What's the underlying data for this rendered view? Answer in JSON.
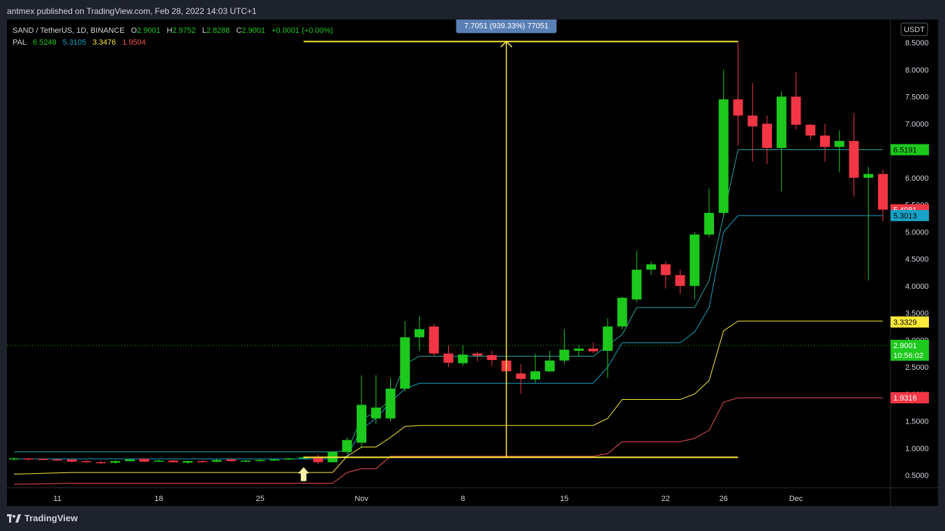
{
  "header": {
    "published": "antmex published on TradingView.com, Feb 28, 2022 14:03 UTC+1"
  },
  "legend": {
    "symbol": "SAND / TetherUS, 1D, BINANCE",
    "o_label": "O",
    "o_value": "2.9001",
    "h_label": "H",
    "h_value": "2.9752",
    "l_label": "L",
    "l_value": "2.8288",
    "c_label": "C",
    "c_value": "2.9001",
    "change": "+0.0001 (+0.00%)",
    "pal_label": "PAL",
    "pal_values": [
      "6.5248",
      "5.3105",
      "3.3476",
      "1.9504"
    ]
  },
  "footer": {
    "brand": "TradingView"
  },
  "colors": {
    "up": "#1cc91c",
    "down": "#f23645",
    "measure": "#ffeb3b",
    "teal_line": "#26a69a",
    "cyan_line": "#17a2c6",
    "yellow_line": "#ffeb3b",
    "red_line": "#ef5350",
    "measure_label_bg": "#5a7fb4"
  },
  "chart_data": {
    "type": "candlestick",
    "currency": "USDT",
    "y_ticks": [
      "0.5000",
      "1.0000",
      "1.5000",
      "2.0000",
      "2.5000",
      "3.0000",
      "3.5000",
      "4.0000",
      "4.5000",
      "5.0000",
      "5.5000",
      "6.0000",
      "6.5000",
      "7.0000",
      "7.5000",
      "8.0000",
      "8.5000"
    ],
    "y_tick_values": [
      0.5,
      1,
      1.5,
      2,
      2.5,
      3,
      3.5,
      4,
      4.5,
      5,
      5.5,
      6,
      6.5,
      7,
      7.5,
      8,
      8.5
    ],
    "ylim": [
      0.3,
      8.9
    ],
    "x_ticks": [
      {
        "label": "11",
        "i": 3
      },
      {
        "label": "18",
        "i": 10
      },
      {
        "label": "25",
        "i": 17
      },
      {
        "label": "Nov",
        "i": 24
      },
      {
        "label": "8",
        "i": 31
      },
      {
        "label": "15",
        "i": 38
      },
      {
        "label": "22",
        "i": 45
      },
      {
        "label": "26",
        "i": 49
      },
      {
        "label": "Dec",
        "i": 54
      }
    ],
    "candles": [
      {
        "o": 0.8,
        "h": 0.83,
        "l": 0.77,
        "c": 0.81
      },
      {
        "o": 0.81,
        "h": 0.82,
        "l": 0.77,
        "c": 0.8
      },
      {
        "o": 0.8,
        "h": 0.82,
        "l": 0.78,
        "c": 0.79
      },
      {
        "o": 0.79,
        "h": 0.81,
        "l": 0.76,
        "c": 0.78
      },
      {
        "o": 0.79,
        "h": 0.8,
        "l": 0.73,
        "c": 0.75
      },
      {
        "o": 0.76,
        "h": 0.78,
        "l": 0.73,
        "c": 0.75
      },
      {
        "o": 0.74,
        "h": 0.77,
        "l": 0.71,
        "c": 0.73
      },
      {
        "o": 0.73,
        "h": 0.78,
        "l": 0.71,
        "c": 0.76
      },
      {
        "o": 0.76,
        "h": 0.8,
        "l": 0.75,
        "c": 0.79
      },
      {
        "o": 0.8,
        "h": 0.81,
        "l": 0.74,
        "c": 0.75
      },
      {
        "o": 0.75,
        "h": 0.79,
        "l": 0.74,
        "c": 0.77
      },
      {
        "o": 0.77,
        "h": 0.78,
        "l": 0.73,
        "c": 0.74
      },
      {
        "o": 0.73,
        "h": 0.77,
        "l": 0.71,
        "c": 0.76
      },
      {
        "o": 0.76,
        "h": 0.78,
        "l": 0.74,
        "c": 0.75
      },
      {
        "o": 0.75,
        "h": 0.8,
        "l": 0.74,
        "c": 0.78
      },
      {
        "o": 0.79,
        "h": 0.81,
        "l": 0.75,
        "c": 0.76
      },
      {
        "o": 0.76,
        "h": 0.78,
        "l": 0.74,
        "c": 0.77
      },
      {
        "o": 0.77,
        "h": 0.8,
        "l": 0.75,
        "c": 0.78
      },
      {
        "o": 0.78,
        "h": 0.8,
        "l": 0.76,
        "c": 0.79
      },
      {
        "o": 0.79,
        "h": 0.82,
        "l": 0.78,
        "c": 0.81
      },
      {
        "o": 0.81,
        "h": 0.85,
        "l": 0.8,
        "c": 0.83
      },
      {
        "o": 0.84,
        "h": 0.88,
        "l": 0.71,
        "c": 0.74
      },
      {
        "o": 0.74,
        "h": 0.95,
        "l": 0.73,
        "c": 0.93
      },
      {
        "o": 0.93,
        "h": 1.2,
        "l": 0.9,
        "c": 1.15
      },
      {
        "o": 1.1,
        "h": 2.35,
        "l": 1.0,
        "c": 1.8
      },
      {
        "o": 1.55,
        "h": 2.35,
        "l": 1.45,
        "c": 1.75
      },
      {
        "o": 1.55,
        "h": 2.3,
        "l": 1.5,
        "c": 2.1
      },
      {
        "o": 2.1,
        "h": 3.35,
        "l": 2.05,
        "c": 3.05
      },
      {
        "o": 3.05,
        "h": 3.45,
        "l": 2.8,
        "c": 3.2
      },
      {
        "o": 3.25,
        "h": 3.3,
        "l": 2.7,
        "c": 2.75
      },
      {
        "o": 2.75,
        "h": 2.9,
        "l": 2.5,
        "c": 2.58
      },
      {
        "o": 2.57,
        "h": 2.9,
        "l": 2.52,
        "c": 2.73
      },
      {
        "o": 2.75,
        "h": 2.78,
        "l": 2.6,
        "c": 2.71
      },
      {
        "o": 2.72,
        "h": 2.8,
        "l": 2.52,
        "c": 2.63
      },
      {
        "o": 2.62,
        "h": 2.7,
        "l": 2.32,
        "c": 2.42
      },
      {
        "o": 2.38,
        "h": 2.55,
        "l": 2.0,
        "c": 2.28
      },
      {
        "o": 2.27,
        "h": 2.75,
        "l": 2.2,
        "c": 2.42
      },
      {
        "o": 2.42,
        "h": 2.8,
        "l": 2.4,
        "c": 2.62
      },
      {
        "o": 2.62,
        "h": 3.2,
        "l": 2.55,
        "c": 2.82
      },
      {
        "o": 2.8,
        "h": 2.9,
        "l": 2.7,
        "c": 2.84
      },
      {
        "o": 2.84,
        "h": 2.95,
        "l": 2.75,
        "c": 2.79
      },
      {
        "o": 2.8,
        "h": 3.4,
        "l": 2.3,
        "c": 3.25
      },
      {
        "o": 3.25,
        "h": 3.8,
        "l": 3.2,
        "c": 3.78
      },
      {
        "o": 3.75,
        "h": 4.65,
        "l": 3.7,
        "c": 4.3
      },
      {
        "o": 4.3,
        "h": 4.45,
        "l": 4.2,
        "c": 4.4
      },
      {
        "o": 4.4,
        "h": 4.45,
        "l": 3.95,
        "c": 4.2
      },
      {
        "o": 4.2,
        "h": 4.3,
        "l": 3.85,
        "c": 4.0
      },
      {
        "o": 4.0,
        "h": 5.0,
        "l": 3.75,
        "c": 4.95
      },
      {
        "o": 4.95,
        "h": 5.8,
        "l": 4.9,
        "c": 5.35
      },
      {
        "o": 5.35,
        "h": 8.0,
        "l": 5.3,
        "c": 7.45
      },
      {
        "o": 7.45,
        "h": 8.5,
        "l": 6.6,
        "c": 7.15
      },
      {
        "o": 7.15,
        "h": 7.75,
        "l": 6.3,
        "c": 6.95
      },
      {
        "o": 7.0,
        "h": 7.15,
        "l": 6.25,
        "c": 6.55
      },
      {
        "o": 6.55,
        "h": 7.6,
        "l": 5.75,
        "c": 7.5
      },
      {
        "o": 7.5,
        "h": 7.95,
        "l": 6.9,
        "c": 6.98
      },
      {
        "o": 6.98,
        "h": 7.0,
        "l": 6.7,
        "c": 6.78
      },
      {
        "o": 6.78,
        "h": 7.0,
        "l": 6.3,
        "c": 6.57
      },
      {
        "o": 6.57,
        "h": 6.88,
        "l": 6.1,
        "c": 6.68
      },
      {
        "o": 6.68,
        "h": 7.2,
        "l": 5.65,
        "c": 6.0
      },
      {
        "o": 6.0,
        "h": 6.2,
        "l": 4.1,
        "c": 6.07
      },
      {
        "o": 6.07,
        "h": 6.15,
        "l": 5.2,
        "c": 5.41
      }
    ],
    "pal_lines": [
      {
        "name": "teal",
        "color": "#26a69a",
        "points": [
          [
            0,
            0.93
          ],
          [
            22,
            0.93
          ],
          [
            23,
            0.95
          ],
          [
            24,
            1.55
          ],
          [
            25,
            1.65
          ],
          [
            26,
            1.9
          ],
          [
            27,
            2.55
          ],
          [
            28,
            2.7
          ],
          [
            40,
            2.7
          ],
          [
            41,
            2.9
          ],
          [
            42,
            3.1
          ],
          [
            43,
            3.6
          ],
          [
            47,
            3.6
          ],
          [
            48,
            4.1
          ],
          [
            49,
            5.3
          ],
          [
            50,
            6.52
          ],
          [
            60,
            6.52
          ]
        ]
      },
      {
        "name": "cyan",
        "color": "#17a2c6",
        "points": [
          [
            0,
            0.8
          ],
          [
            22,
            0.8
          ],
          [
            23,
            0.85
          ],
          [
            24,
            1.35
          ],
          [
            25,
            1.55
          ],
          [
            26,
            1.85
          ],
          [
            27,
            2.1
          ],
          [
            28,
            2.2
          ],
          [
            40,
            2.2
          ],
          [
            41,
            2.5
          ],
          [
            42,
            2.95
          ],
          [
            46,
            2.95
          ],
          [
            47,
            3.15
          ],
          [
            48,
            3.6
          ],
          [
            49,
            5.0
          ],
          [
            50,
            5.3
          ],
          [
            60,
            5.3
          ]
        ]
      },
      {
        "name": "yellow",
        "color": "#ffeb3b",
        "points": [
          [
            0,
            0.52
          ],
          [
            4,
            0.55
          ],
          [
            22,
            0.55
          ],
          [
            23,
            0.85
          ],
          [
            24,
            1.02
          ],
          [
            25,
            1.02
          ],
          [
            26,
            1.2
          ],
          [
            27,
            1.4
          ],
          [
            28,
            1.42
          ],
          [
            40,
            1.42
          ],
          [
            41,
            1.55
          ],
          [
            42,
            1.9
          ],
          [
            46,
            1.9
          ],
          [
            47,
            2.0
          ],
          [
            48,
            2.25
          ],
          [
            49,
            3.17
          ],
          [
            50,
            3.35
          ],
          [
            60,
            3.35
          ]
        ]
      },
      {
        "name": "red",
        "color": "#ef5350",
        "points": [
          [
            0,
            0.33
          ],
          [
            4,
            0.35
          ],
          [
            22,
            0.35
          ],
          [
            23,
            0.55
          ],
          [
            24,
            0.62
          ],
          [
            25,
            0.62
          ],
          [
            26,
            0.85
          ],
          [
            27,
            0.85
          ],
          [
            40,
            0.85
          ],
          [
            41,
            0.9
          ],
          [
            42,
            1.12
          ],
          [
            46,
            1.12
          ],
          [
            47,
            1.18
          ],
          [
            48,
            1.33
          ],
          [
            49,
            1.85
          ],
          [
            50,
            1.93
          ],
          [
            60,
            1.93
          ]
        ]
      }
    ],
    "price_labels": [
      {
        "value": 6.5191,
        "text": "6.5191",
        "bg": "#1cc91c",
        "fg": "#000000"
      },
      {
        "value": 5.4081,
        "text": "5.4081",
        "bg": "#f23645",
        "fg": "#ffffff"
      },
      {
        "value": 5.3013,
        "text": "5.3013",
        "bg": "#17a2c6",
        "fg": "#000000"
      },
      {
        "value": 3.3329,
        "text": "3.3329",
        "bg": "#ffeb3b",
        "fg": "#000000"
      },
      {
        "value": 2.9001,
        "text": "2.9001",
        "text2": "10:56:02",
        "bg": "#1cc91c",
        "fg": "#ffffff"
      },
      {
        "value": 1.9316,
        "text": "1.9316",
        "bg": "#f23645",
        "fg": "#ffffff"
      }
    ],
    "current_price": 2.9001,
    "measure": {
      "low": 0.83,
      "high": 8.52,
      "i_start": 20,
      "i_mid": 34,
      "i_end": 50,
      "label": "7.7051 (939.33%) 77051"
    },
    "arrow": {
      "i": 20,
      "price": 0.52
    }
  }
}
